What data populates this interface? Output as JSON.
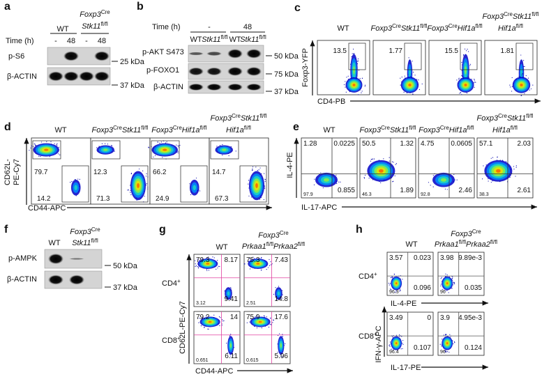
{
  "a": {
    "label": "a",
    "wt": "WT",
    "geno_line1": [
      "Foxp3",
      "Cre"
    ],
    "geno_line2": [
      "Stk11",
      "fl/fl"
    ],
    "time_label": "Time (h)",
    "times": [
      "-",
      "48",
      "-",
      "48"
    ],
    "rows": [
      "p-S6",
      "β-ACTIN"
    ],
    "markers": [
      "25 kDa",
      "37 kDa"
    ]
  },
  "b": {
    "label": "b",
    "time_label": "Time (h)",
    "times": [
      "-",
      "48"
    ],
    "lanes": [
      "WT",
      [
        "Stk11",
        "fl/fl"
      ],
      "WT",
      [
        "Stk11",
        "fl/fl"
      ]
    ],
    "rows": [
      "p-AKT S473",
      "p-FOXO1",
      "β-ACTIN"
    ],
    "markers": [
      "50 kDa",
      "75 kDa",
      "37 kDa"
    ]
  },
  "c": {
    "label": "c",
    "columns": [
      "WT",
      [
        "Foxp3",
        "Cre",
        "Stk11",
        "fl/fl"
      ],
      [
        "Foxp3",
        "Cre",
        "Hif1a",
        "fl/fl"
      ],
      [
        [
          "Foxp3",
          "Cre",
          "Stk11",
          "fl/fl"
        ],
        [
          "Hif1a",
          "fl/fl"
        ]
      ]
    ],
    "values": [
      "13.5",
      "1.77",
      "15.5",
      "1.81"
    ],
    "y_axis": "Foxp3-YFP",
    "x_axis": "CD4-PB"
  },
  "d": {
    "label": "d",
    "columns": [
      "WT",
      [
        "Foxp3",
        "Cre",
        "Stk11",
        "fl/fl"
      ],
      [
        "Foxp3",
        "Cre",
        "Hif1a",
        "fl/fl"
      ],
      [
        [
          "Foxp3",
          "Cre",
          "Stk11",
          "fl/fl"
        ],
        [
          "Hif1a",
          "fl/fl"
        ]
      ]
    ],
    "values": [
      [
        "79.7",
        "14.2"
      ],
      [
        "12.3",
        "71.3"
      ],
      [
        "66.2",
        "24.9"
      ],
      [
        "14.7",
        "67.3"
      ]
    ],
    "y_axis": [
      "CD62L-",
      "PE-Cy7"
    ],
    "x_axis": "CD44-APC"
  },
  "e": {
    "label": "e",
    "columns": [
      "WT",
      [
        "Foxp3",
        "Cre",
        "Stk11",
        "fl/fl"
      ],
      [
        "Foxp3",
        "Cre",
        "Hif1a",
        "fl/fl"
      ],
      [
        [
          "Foxp3",
          "Cre",
          "Stk11",
          "fl/fl"
        ],
        [
          "Hif1a",
          "fl/fl"
        ]
      ]
    ],
    "values": [
      [
        "1.28",
        "0.0225",
        "97.9",
        "0.855"
      ],
      [
        "50.5",
        "1.32",
        "46.3",
        "1.89"
      ],
      [
        "4.75",
        "0.0605",
        "92.8",
        "2.46"
      ],
      [
        "57.1",
        "2.03",
        "38.3",
        "2.61"
      ]
    ],
    "y_axis": "IL-4-PE",
    "x_axis": "IL-17-APC"
  },
  "f": {
    "label": "f",
    "wt": "WT",
    "geno_line1": [
      "Foxp3",
      "Cre"
    ],
    "geno_line2": [
      "Stk11",
      "fl/fl"
    ],
    "rows": [
      "p-AMPK",
      "β-ACTIN"
    ],
    "markers": [
      "50 kDa",
      "37 kDa"
    ]
  },
  "g": {
    "label": "g",
    "wt": "WT",
    "geno_line1": [
      "Foxp3",
      "Cre"
    ],
    "geno_line2": [
      "Prkaa1",
      "fl/fl",
      "Prkaa2",
      "fl/fl"
    ],
    "rows": [
      [
        "CD4",
        "+"
      ],
      [
        "CD8",
        "+"
      ]
    ],
    "values": [
      [
        [
          "79.3",
          "8.17",
          "3.12",
          "9.41"
        ],
        [
          "75.3",
          "7.43",
          "2.51",
          "14.8"
        ]
      ],
      [
        [
          "79.2",
          "14",
          "0.651",
          "6.11"
        ],
        [
          "75.9",
          "17.6",
          "0.615",
          "5.96"
        ]
      ]
    ],
    "y_axis": "CD62L-PE-Cy7",
    "x_axis": "CD44-APC"
  },
  "h": {
    "label": "h",
    "wt": "WT",
    "geno_line1": [
      "Foxp3",
      "Cre"
    ],
    "geno_line2": [
      "Prkaa1",
      "fl/fl",
      "Prkaa2",
      "fl/fl"
    ],
    "rows": [
      [
        "CD4",
        "+"
      ],
      [
        "CD8",
        "+"
      ]
    ],
    "values": [
      [
        [
          "3.57",
          "0.023",
          "96.3",
          "0.096"
        ],
        [
          "3.98",
          "9.89e-3",
          "96",
          "0.035"
        ]
      ],
      [
        [
          "3.49",
          "0",
          "96.4",
          "0.107"
        ],
        [
          "3.9",
          "4.95e-3",
          "96",
          "0.124"
        ]
      ]
    ],
    "y_axis": "IFN-γ-APC",
    "x_axes": [
      "IL-4-PE",
      "IL-17-PE"
    ]
  }
}
